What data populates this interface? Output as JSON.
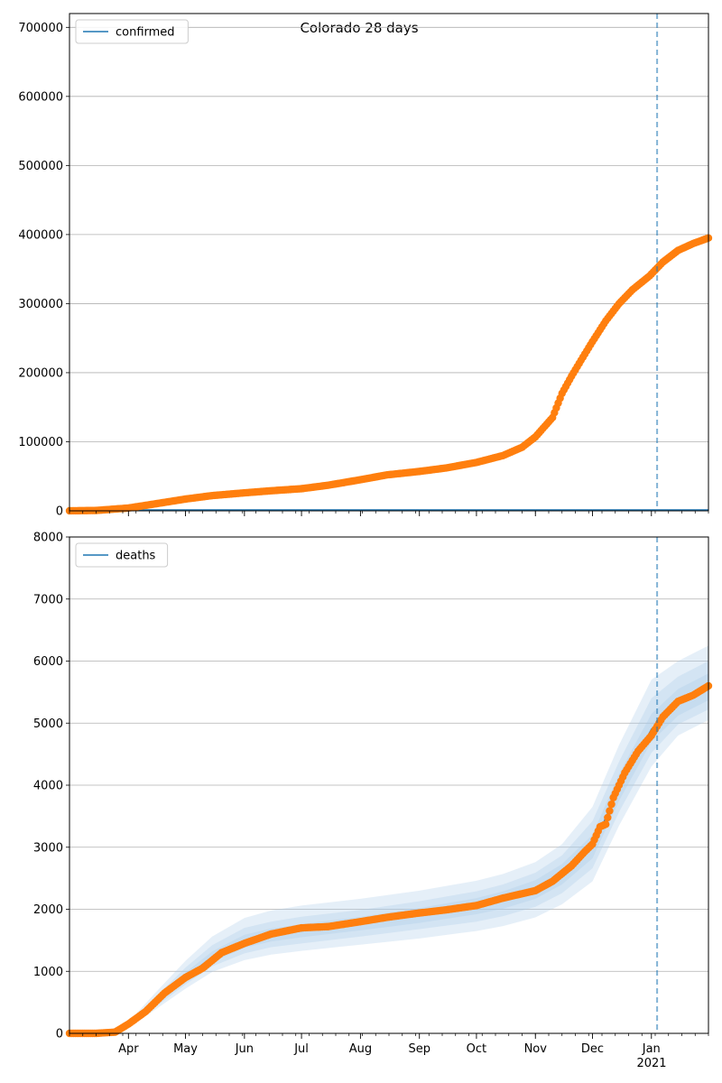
{
  "figure": {
    "title": "Colorado 28 days",
    "month_ticks": [
      "Apr",
      "May",
      "Jun",
      "Jul",
      "Aug",
      "Sep",
      "Oct",
      "Nov",
      "Dec",
      "Jan"
    ],
    "year_label": "2021"
  },
  "chart_data": [
    {
      "type": "scatter",
      "legend": [
        "confirmed"
      ],
      "legend_placement": "top-left",
      "grid": "y-only",
      "x_type": "date",
      "xlim": [
        "2020-03-01",
        "2021-01-31"
      ],
      "ylim": [
        0,
        720000
      ],
      "yticks": [
        0,
        100000,
        200000,
        300000,
        400000,
        500000,
        600000,
        700000
      ],
      "vline": "2021-01-04",
      "colors": {
        "observed": "#ff7f0e",
        "model": "#1f77b4",
        "vline": "#1f77b4",
        "grid": "#b0b0b0"
      },
      "series": [
        {
          "name": "confirmed",
          "kind": "points",
          "x": [
            "2020-03-01",
            "2020-03-15",
            "2020-04-01",
            "2020-04-15",
            "2020-05-01",
            "2020-05-15",
            "2020-06-01",
            "2020-06-15",
            "2020-07-01",
            "2020-07-15",
            "2020-08-01",
            "2020-08-15",
            "2020-09-01",
            "2020-09-15",
            "2020-10-01",
            "2020-10-15",
            "2020-10-25",
            "2020-11-01",
            "2020-11-10",
            "2020-11-15",
            "2020-11-20",
            "2020-11-25",
            "2020-12-01",
            "2020-12-08",
            "2020-12-15",
            "2020-12-22",
            "2020-12-31",
            "2021-01-07",
            "2021-01-15",
            "2021-01-23",
            "2021-01-31"
          ],
          "y": [
            0,
            500,
            4000,
            10000,
            17000,
            22000,
            26000,
            29000,
            32000,
            37000,
            45000,
            52000,
            57000,
            62000,
            70000,
            80000,
            92000,
            107000,
            135000,
            170000,
            195000,
            218000,
            245000,
            275000,
            300000,
            320000,
            340000,
            360000,
            377000,
            387000,
            395000
          ]
        }
      ]
    },
    {
      "type": "scatter",
      "legend": [
        "deaths"
      ],
      "legend_placement": "top-left",
      "grid": "y-only",
      "x_type": "date",
      "xlim": [
        "2020-03-01",
        "2021-01-31"
      ],
      "ylim": [
        0,
        8000
      ],
      "yticks": [
        0,
        1000,
        2000,
        3000,
        4000,
        5000,
        6000,
        7000,
        8000
      ],
      "vline": "2021-01-04",
      "colors": {
        "observed": "#ff7f0e",
        "model": "#1f77b4",
        "band": "#aac9e8",
        "vline": "#1f77b4",
        "grid": "#b0b0b0"
      },
      "series": [
        {
          "name": "deaths",
          "kind": "points",
          "x": [
            "2020-03-01",
            "2020-03-15",
            "2020-03-25",
            "2020-04-01",
            "2020-04-10",
            "2020-04-20",
            "2020-05-01",
            "2020-05-10",
            "2020-05-20",
            "2020-06-01",
            "2020-06-15",
            "2020-07-01",
            "2020-07-15",
            "2020-08-01",
            "2020-08-15",
            "2020-09-01",
            "2020-09-15",
            "2020-10-01",
            "2020-10-15",
            "2020-11-01",
            "2020-11-10",
            "2020-11-20",
            "2020-11-27",
            "2020-12-01",
            "2020-12-05",
            "2020-12-08",
            "2020-12-12",
            "2020-12-18",
            "2020-12-25",
            "2021-01-01",
            "2021-01-07",
            "2021-01-15",
            "2021-01-23",
            "2021-01-31"
          ],
          "y": [
            0,
            0,
            20,
            150,
            350,
            650,
            900,
            1050,
            1300,
            1450,
            1600,
            1700,
            1720,
            1800,
            1870,
            1940,
            1990,
            2060,
            2180,
            2300,
            2450,
            2700,
            2930,
            3050,
            3330,
            3370,
            3800,
            4200,
            4550,
            4800,
            5100,
            5350,
            5450,
            5600
          ]
        },
        {
          "name": "model",
          "kind": "line",
          "x": [
            "2020-03-01",
            "2020-03-20",
            "2020-04-01",
            "2020-04-15",
            "2020-05-01",
            "2020-05-15",
            "2020-06-01",
            "2020-06-15",
            "2020-07-01",
            "2020-08-01",
            "2020-09-01",
            "2020-10-01",
            "2020-10-15",
            "2020-11-01",
            "2020-11-15",
            "2020-12-01",
            "2020-12-15",
            "2021-01-01",
            "2021-01-15",
            "2021-01-31"
          ],
          "y": [
            0,
            20,
            130,
            480,
            900,
            1230,
            1480,
            1580,
            1650,
            1770,
            1900,
            2050,
            2150,
            2320,
            2560,
            3000,
            3950,
            4900,
            5300,
            5550
          ]
        }
      ],
      "bands": [
        {
          "x": [
            "2020-03-01",
            "2020-03-20",
            "2020-04-01",
            "2020-04-15",
            "2020-05-01",
            "2020-05-15",
            "2020-06-01",
            "2020-06-15",
            "2020-07-01",
            "2020-08-01",
            "2020-09-01",
            "2020-10-01",
            "2020-10-15",
            "2020-11-01",
            "2020-11-15",
            "2020-12-01",
            "2020-12-15",
            "2021-01-01",
            "2021-01-15",
            "2021-01-31"
          ],
          "lower": [
            0,
            15,
            100,
            380,
            720,
            990,
            1180,
            1270,
            1330,
            1430,
            1530,
            1650,
            1730,
            1870,
            2080,
            2450,
            3350,
            4300,
            4800,
            5050
          ],
          "upper": [
            0,
            30,
            180,
            650,
            1170,
            1560,
            1860,
            1980,
            2060,
            2170,
            2300,
            2460,
            2570,
            2760,
            3050,
            3650,
            4650,
            5700,
            6000,
            6250
          ]
        },
        {
          "x": [
            "2020-03-01",
            "2020-03-20",
            "2020-04-01",
            "2020-04-15",
            "2020-05-01",
            "2020-05-15",
            "2020-06-01",
            "2020-06-15",
            "2020-07-01",
            "2020-08-01",
            "2020-09-01",
            "2020-10-01",
            "2020-10-15",
            "2020-11-01",
            "2020-11-15",
            "2020-12-01",
            "2020-12-15",
            "2021-01-01",
            "2021-01-15",
            "2021-01-31"
          ],
          "lower": [
            0,
            17,
            110,
            420,
            790,
            1080,
            1290,
            1390,
            1450,
            1560,
            1680,
            1800,
            1890,
            2040,
            2260,
            2660,
            3570,
            4520,
            4980,
            5220
          ],
          "upper": [
            0,
            26,
            160,
            580,
            1060,
            1420,
            1700,
            1800,
            1880,
            1990,
            2130,
            2290,
            2400,
            2590,
            2870,
            3420,
            4380,
            5400,
            5750,
            6000
          ]
        },
        {
          "x": [
            "2020-03-01",
            "2020-03-20",
            "2020-04-01",
            "2020-04-15",
            "2020-05-01",
            "2020-05-15",
            "2020-06-01",
            "2020-06-15",
            "2020-07-01",
            "2020-08-01",
            "2020-09-01",
            "2020-10-01",
            "2020-10-15",
            "2020-11-01",
            "2020-11-15",
            "2020-12-01",
            "2020-12-15",
            "2021-01-01",
            "2021-01-15",
            "2021-01-31"
          ],
          "lower": [
            0,
            18,
            120,
            450,
            840,
            1150,
            1380,
            1480,
            1550,
            1660,
            1780,
            1920,
            2010,
            2170,
            2400,
            2820,
            3750,
            4700,
            5120,
            5370
          ],
          "upper": [
            0,
            23,
            145,
            530,
            980,
            1320,
            1590,
            1690,
            1760,
            1880,
            2020,
            2180,
            2290,
            2470,
            2730,
            3200,
            4180,
            5150,
            5550,
            5800
          ]
        }
      ]
    }
  ]
}
